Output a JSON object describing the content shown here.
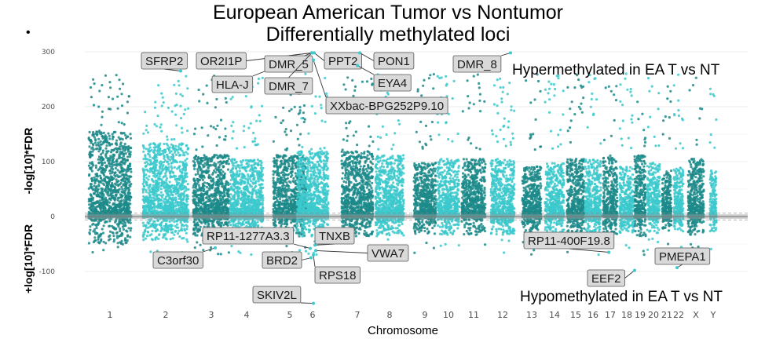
{
  "chart_data": {
    "type": "scatter",
    "subtype": "manhattan",
    "title_line1": "European American Tumor vs Nontumor",
    "title_line2": "Differentially methylated loci",
    "bullet": "•",
    "xlabel": "Chromosome",
    "ylabel_top": "-log[10]*FDR",
    "ylabel_bottom": "+log[10]*FDR",
    "ylim": [
      -160,
      310
    ],
    "yticks": [
      300,
      200,
      100,
      0,
      -100
    ],
    "ytick_labels": [
      "300",
      "200",
      "100",
      "0",
      "-100"
    ],
    "chromosomes": [
      "1",
      "2",
      "3",
      "4",
      "5",
      "6",
      "7",
      "8",
      "9",
      "10",
      "11",
      "12",
      "13",
      "14",
      "15",
      "16",
      "17",
      "18",
      "19",
      "20",
      "21",
      "22",
      "X",
      "Y"
    ],
    "colors": {
      "dark": "#1c8a8a",
      "light": "#3cc9cc",
      "label_fill": "#d9d9d9"
    },
    "annotations": {
      "hyper": "Hypermethylated in EA T vs NT",
      "hypo": "Hypomethylated in EA T vs NT"
    },
    "labeled_loci": [
      {
        "gene": "SFRP2",
        "chrom": "2",
        "value": 265
      },
      {
        "gene": "OR2I1P",
        "chrom": "6",
        "value": 298
      },
      {
        "gene": "HLA-J",
        "chrom": "6",
        "value": 298
      },
      {
        "gene": "DMR_5",
        "chrom": "6",
        "value": 298
      },
      {
        "gene": "DMR_7",
        "chrom": "6",
        "value": 298
      },
      {
        "gene": "PPT2",
        "chrom": "6",
        "value": 298
      },
      {
        "gene": "PON1",
        "chrom": "7",
        "value": 298
      },
      {
        "gene": "EYA4",
        "chrom": "6",
        "value": 275
      },
      {
        "gene": "XXbac-BPG252P9.10",
        "chrom": "6",
        "value": 285
      },
      {
        "gene": "DMR_8",
        "chrom": "12",
        "value": 298
      },
      {
        "gene": "RP11-1277A3.3",
        "chrom": "5",
        "value": -58
      },
      {
        "gene": "TNXB",
        "chrom": "6",
        "value": -52
      },
      {
        "gene": "C3orf30",
        "chrom": "3",
        "value": -57
      },
      {
        "gene": "BRD2",
        "chrom": "6",
        "value": -75
      },
      {
        "gene": "VWA7",
        "chrom": "6",
        "value": -62
      },
      {
        "gene": "RPS18",
        "chrom": "6",
        "value": -70
      },
      {
        "gene": "SKIV2L",
        "chrom": "6",
        "value": -158
      },
      {
        "gene": "RP11-400F19.8",
        "chrom": "17",
        "value": -65
      },
      {
        "gene": "PMEPA1",
        "chrom": "20",
        "value": -93
      },
      {
        "gene": "EEF2",
        "chrom": "19",
        "value": -98
      }
    ]
  }
}
